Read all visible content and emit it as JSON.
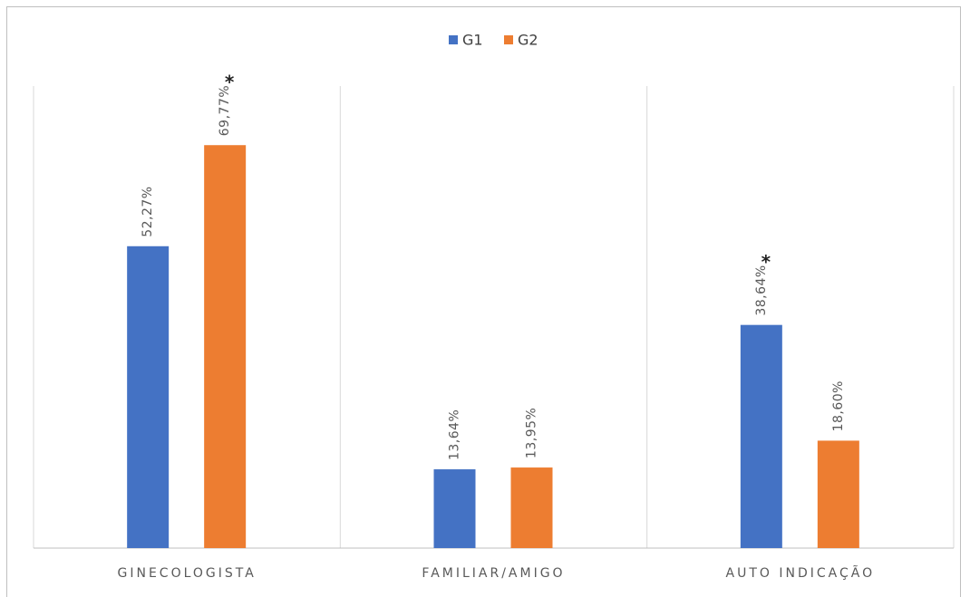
{
  "chart_data": {
    "type": "bar",
    "categories": [
      "GINECOLOGISTA",
      "FAMILIAR/AMIGO",
      "AUTO INDICAÇÃO"
    ],
    "series": [
      {
        "name": "G1",
        "color": "#4472c4",
        "values": [
          52.27,
          13.64,
          38.64
        ],
        "value_labels": [
          "52,27%",
          "13,64%",
          "38,64%"
        ]
      },
      {
        "name": "G2",
        "color": "#ed7d31",
        "values": [
          69.77,
          13.95,
          18.6
        ],
        "value_labels": [
          "69,77%",
          "13,95%",
          "18,60%"
        ]
      }
    ],
    "annotations": [
      {
        "text": "*",
        "series": 1,
        "category": 0
      },
      {
        "text": "*",
        "series": 0,
        "category": 2
      }
    ],
    "ylim": [
      0,
      80
    ],
    "legend": "top"
  }
}
